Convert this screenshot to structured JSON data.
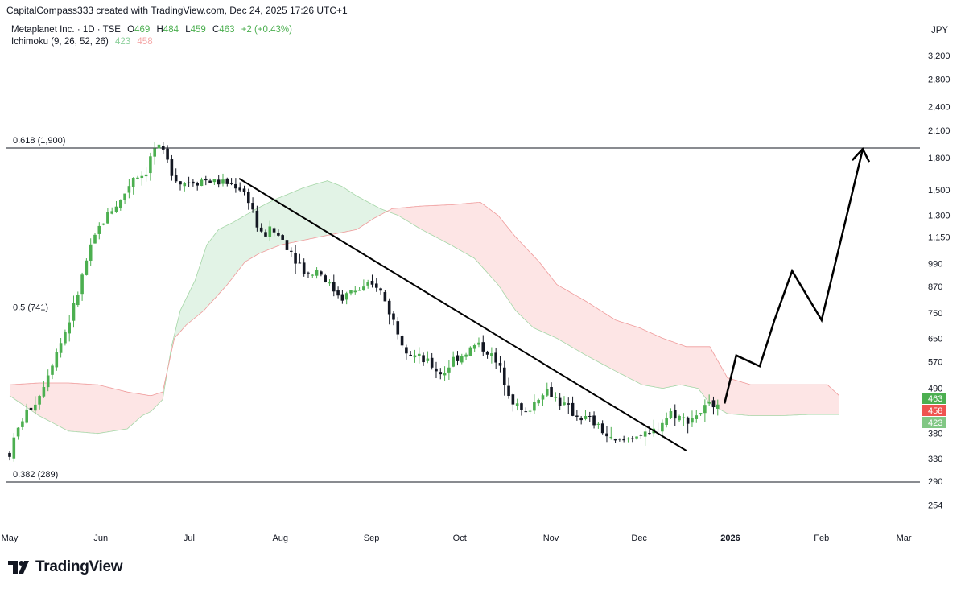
{
  "caption": "CapitalCompass333 created with TradingView.com, Dec 24, 2025 17:26 UTC+1",
  "legend": {
    "symbol": "Metaplanet Inc. · 1D · TSE",
    "o_label": "O",
    "o_value": "469",
    "h_label": "H",
    "h_value": "484",
    "l_label": "L",
    "l_value": "459",
    "c_label": "C",
    "c_value": "463",
    "change": "+2 (+0.43%)",
    "indicator": "Ichimoku (9, 26, 52, 26)",
    "ind_val_1": "423",
    "ind_val_2": "458"
  },
  "currency": "JPY",
  "brand": "TradingView",
  "colors": {
    "up": "#4caf50",
    "down": "#131722",
    "cloud_bull": "#dff2e3",
    "cloud_bear": "#fde2e2",
    "span_a": "#a5d6a7",
    "span_b": "#ef9a9a",
    "price_tag": "#4caf50",
    "tag_red": "#ef5350",
    "tag_green_light": "#81c784"
  },
  "chart_data": {
    "type": "candlestick",
    "scale": "log",
    "currency": "JPY",
    "y_ticks": [
      "3,200",
      "2,800",
      "2,400",
      "2,100",
      "1,800",
      "1,500",
      "1,300",
      "1,150",
      "990",
      "870",
      "750",
      "650",
      "570",
      "490",
      "380",
      "330",
      "290",
      "254"
    ],
    "y_tick_values": [
      3200,
      2800,
      2400,
      2100,
      1800,
      1500,
      1300,
      1150,
      990,
      870,
      750,
      650,
      570,
      490,
      380,
      330,
      290,
      254
    ],
    "x_labels": [
      "May",
      "Jun",
      "Jul",
      "Aug",
      "Sep",
      "Oct",
      "Nov",
      "Dec",
      "2026",
      "Feb",
      "Mar"
    ],
    "x_label_day": [
      0,
      31,
      61,
      92,
      123,
      153,
      184,
      214,
      245,
      276,
      304
    ],
    "price_tags": [
      {
        "label": "463",
        "value": 463,
        "color": "#4caf50"
      },
      {
        "label": "458",
        "value": 458,
        "color": "#ef5350"
      },
      {
        "label": "423",
        "value": 423,
        "color": "#81c784"
      }
    ],
    "fib_levels": [
      {
        "label": "0.618 (1,900)",
        "value": 1900
      },
      {
        "label": "0.5 (741)",
        "value": 741
      },
      {
        "label": "0.382 (289)",
        "value": 289
      }
    ],
    "trendline": {
      "from": {
        "day": 78,
        "value": 1600
      },
      "to": {
        "day": 230,
        "value": 345
      }
    },
    "projection_path": [
      {
        "day": 243,
        "value": 450
      },
      {
        "day": 247,
        "value": 590
      },
      {
        "day": 255,
        "value": 555
      },
      {
        "day": 260,
        "value": 720
      },
      {
        "day": 266,
        "value": 950
      },
      {
        "day": 276,
        "value": 720
      },
      {
        "day": 290,
        "value": 1890
      }
    ],
    "projection_arrow_tip": {
      "day": 290,
      "value": 1890
    },
    "candle_path": [
      {
        "day": 0,
        "value": 340
      },
      {
        "day": 4,
        "value": 410
      },
      {
        "day": 10,
        "value": 470
      },
      {
        "day": 14,
        "value": 560
      },
      {
        "day": 18,
        "value": 650
      },
      {
        "day": 22,
        "value": 780
      },
      {
        "day": 26,
        "value": 1000
      },
      {
        "day": 30,
        "value": 1200
      },
      {
        "day": 34,
        "value": 1330
      },
      {
        "day": 38,
        "value": 1420
      },
      {
        "day": 42,
        "value": 1620
      },
      {
        "day": 46,
        "value": 1640
      },
      {
        "day": 49,
        "value": 1900
      },
      {
        "day": 52,
        "value": 1850
      },
      {
        "day": 55,
        "value": 1680
      },
      {
        "day": 58,
        "value": 1560
      },
      {
        "day": 62,
        "value": 1580
      },
      {
        "day": 66,
        "value": 1590
      },
      {
        "day": 70,
        "value": 1570
      },
      {
        "day": 74,
        "value": 1560
      },
      {
        "day": 78,
        "value": 1530
      },
      {
        "day": 82,
        "value": 1400
      },
      {
        "day": 85,
        "value": 1150
      },
      {
        "day": 89,
        "value": 1200
      },
      {
        "day": 93,
        "value": 1130
      },
      {
        "day": 97,
        "value": 1030
      },
      {
        "day": 101,
        "value": 930
      },
      {
        "day": 105,
        "value": 960
      },
      {
        "day": 109,
        "value": 870
      },
      {
        "day": 113,
        "value": 820
      },
      {
        "day": 117,
        "value": 850
      },
      {
        "day": 121,
        "value": 860
      },
      {
        "day": 125,
        "value": 880
      },
      {
        "day": 129,
        "value": 760
      },
      {
        "day": 133,
        "value": 650
      },
      {
        "day": 136,
        "value": 600
      },
      {
        "day": 139,
        "value": 580
      },
      {
        "day": 143,
        "value": 560
      },
      {
        "day": 147,
        "value": 530
      },
      {
        "day": 151,
        "value": 580
      },
      {
        "day": 155,
        "value": 600
      },
      {
        "day": 159,
        "value": 630
      },
      {
        "day": 163,
        "value": 600
      },
      {
        "day": 167,
        "value": 540
      },
      {
        "day": 171,
        "value": 460
      },
      {
        "day": 175,
        "value": 420
      },
      {
        "day": 178,
        "value": 450
      },
      {
        "day": 182,
        "value": 490
      },
      {
        "day": 185,
        "value": 470
      },
      {
        "day": 189,
        "value": 440
      },
      {
        "day": 193,
        "value": 420
      },
      {
        "day": 197,
        "value": 410
      },
      {
        "day": 201,
        "value": 390
      },
      {
        "day": 205,
        "value": 360
      },
      {
        "day": 209,
        "value": 365
      },
      {
        "day": 213,
        "value": 380
      },
      {
        "day": 217,
        "value": 370
      },
      {
        "day": 221,
        "value": 400
      },
      {
        "day": 225,
        "value": 430
      },
      {
        "day": 229,
        "value": 410
      },
      {
        "day": 233,
        "value": 420
      },
      {
        "day": 237,
        "value": 440
      },
      {
        "day": 241,
        "value": 463
      }
    ],
    "span_a": [
      {
        "day": 0,
        "value": 470
      },
      {
        "day": 10,
        "value": 420
      },
      {
        "day": 20,
        "value": 385
      },
      {
        "day": 30,
        "value": 380
      },
      {
        "day": 40,
        "value": 390
      },
      {
        "day": 45,
        "value": 420
      },
      {
        "day": 48,
        "value": 430
      },
      {
        "day": 52,
        "value": 460
      },
      {
        "day": 55,
        "value": 620
      },
      {
        "day": 58,
        "value": 760
      },
      {
        "day": 63,
        "value": 900
      },
      {
        "day": 67,
        "value": 1100
      },
      {
        "day": 71,
        "value": 1200
      },
      {
        "day": 76,
        "value": 1250
      },
      {
        "day": 84,
        "value": 1350
      },
      {
        "day": 90,
        "value": 1420
      },
      {
        "day": 100,
        "value": 1520
      },
      {
        "day": 108,
        "value": 1580
      },
      {
        "day": 113,
        "value": 1530
      },
      {
        "day": 118,
        "value": 1450
      },
      {
        "day": 126,
        "value": 1350
      },
      {
        "day": 132,
        "value": 1300
      },
      {
        "day": 140,
        "value": 1200
      },
      {
        "day": 150,
        "value": 1100
      },
      {
        "day": 158,
        "value": 1020
      },
      {
        "day": 166,
        "value": 880
      },
      {
        "day": 172,
        "value": 760
      },
      {
        "day": 178,
        "value": 690
      },
      {
        "day": 186,
        "value": 650
      },
      {
        "day": 196,
        "value": 590
      },
      {
        "day": 206,
        "value": 540
      },
      {
        "day": 215,
        "value": 500
      },
      {
        "day": 222,
        "value": 490
      },
      {
        "day": 228,
        "value": 500
      },
      {
        "day": 234,
        "value": 490
      },
      {
        "day": 238,
        "value": 450
      },
      {
        "day": 244,
        "value": 425
      },
      {
        "day": 252,
        "value": 420
      },
      {
        "day": 262,
        "value": 420
      },
      {
        "day": 272,
        "value": 423
      },
      {
        "day": 282,
        "value": 423
      }
    ],
    "span_b": [
      {
        "day": 0,
        "value": 500
      },
      {
        "day": 10,
        "value": 505
      },
      {
        "day": 20,
        "value": 505
      },
      {
        "day": 30,
        "value": 500
      },
      {
        "day": 40,
        "value": 480
      },
      {
        "day": 48,
        "value": 470
      },
      {
        "day": 52,
        "value": 480
      },
      {
        "day": 56,
        "value": 650
      },
      {
        "day": 60,
        "value": 700
      },
      {
        "day": 66,
        "value": 760
      },
      {
        "day": 74,
        "value": 880
      },
      {
        "day": 80,
        "value": 1000
      },
      {
        "day": 85,
        "value": 1050
      },
      {
        "day": 92,
        "value": 1100
      },
      {
        "day": 105,
        "value": 1150
      },
      {
        "day": 118,
        "value": 1200
      },
      {
        "day": 124,
        "value": 1280
      },
      {
        "day": 130,
        "value": 1350
      },
      {
        "day": 140,
        "value": 1370
      },
      {
        "day": 150,
        "value": 1380
      },
      {
        "day": 160,
        "value": 1400
      },
      {
        "day": 166,
        "value": 1300
      },
      {
        "day": 172,
        "value": 1150
      },
      {
        "day": 180,
        "value": 1000
      },
      {
        "day": 186,
        "value": 880
      },
      {
        "day": 196,
        "value": 800
      },
      {
        "day": 206,
        "value": 720
      },
      {
        "day": 214,
        "value": 690
      },
      {
        "day": 222,
        "value": 650
      },
      {
        "day": 230,
        "value": 620
      },
      {
        "day": 238,
        "value": 620
      },
      {
        "day": 244,
        "value": 520
      },
      {
        "day": 252,
        "value": 500
      },
      {
        "day": 262,
        "value": 500
      },
      {
        "day": 272,
        "value": 500
      },
      {
        "day": 278,
        "value": 500
      },
      {
        "day": 282,
        "value": 470
      }
    ]
  }
}
